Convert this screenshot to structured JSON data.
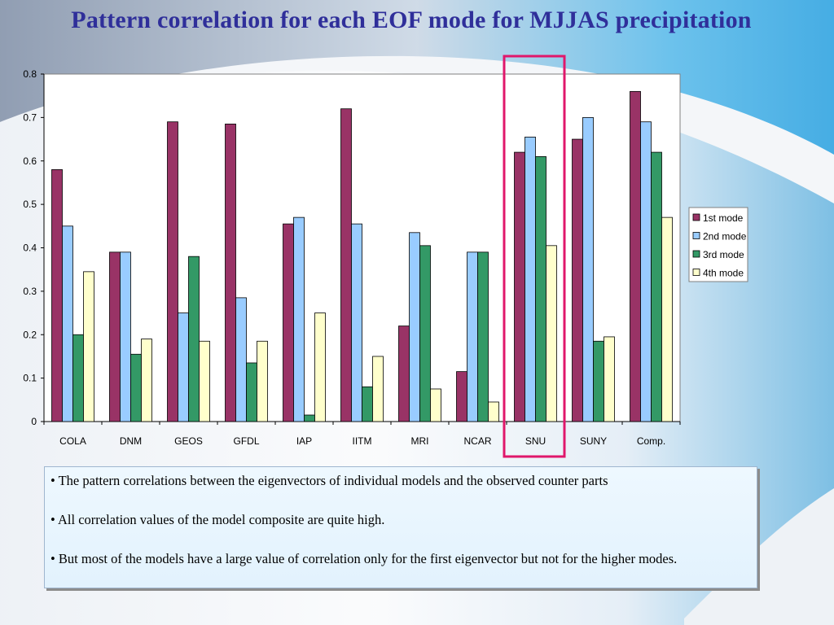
{
  "slide": {
    "title": "Pattern correlation for each EOF mode for MJJAS precipitation"
  },
  "colors": {
    "title": "#2f2f9a",
    "highlight_box": "#e0176b",
    "mode1": "#993366",
    "mode2": "#99ccff",
    "mode3": "#339966",
    "mode4": "#ffffcc"
  },
  "chart_data": {
    "type": "bar",
    "title": "",
    "xlabel": "",
    "ylabel": "",
    "ylim": [
      0,
      0.8
    ],
    "yticks": [
      "0",
      "0.1",
      "0.2",
      "0.3",
      "0.4",
      "0.5",
      "0.6",
      "0.7",
      "0.8"
    ],
    "categories": [
      "COLA",
      "DNM",
      "GEOS",
      "GFDL",
      "IAP",
      "IITM",
      "MRI",
      "NCAR",
      "SNU",
      "SUNY",
      "Comp."
    ],
    "series": [
      {
        "name": "1st mode",
        "values": [
          0.58,
          0.39,
          0.69,
          0.685,
          0.455,
          0.72,
          0.22,
          0.115,
          0.62,
          0.65,
          0.76
        ]
      },
      {
        "name": "2nd mode",
        "values": [
          0.45,
          0.39,
          0.25,
          0.285,
          0.47,
          0.455,
          0.435,
          0.39,
          0.655,
          0.7,
          0.69
        ]
      },
      {
        "name": "3rd mode",
        "values": [
          0.2,
          0.155,
          0.38,
          0.135,
          0.015,
          0.08,
          0.405,
          0.39,
          0.61,
          0.185,
          0.62
        ]
      },
      {
        "name": "4th mode",
        "values": [
          0.345,
          0.19,
          0.185,
          0.185,
          0.25,
          0.15,
          0.075,
          0.045,
          0.405,
          0.195,
          0.47
        ]
      }
    ],
    "highlighted_category": "SNU",
    "legend_position": "right",
    "grid": false
  },
  "notes": [
    "• The pattern correlations between the eigenvectors of individual models and the observed counter parts",
    "• All correlation values of the model composite are quite high.",
    "• But most of the models have a large value of correlation only for the first eigenvector but not for the higher modes."
  ]
}
